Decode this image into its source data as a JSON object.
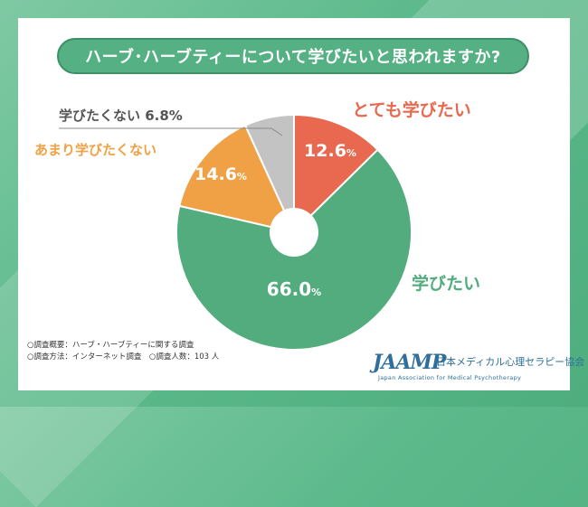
{
  "title": "ハーブ･ハーブティーについて学びたいと思われますか?",
  "chart_data": {
    "type": "pie",
    "style": "donut",
    "title": "ハーブ･ハーブティーについて学びたいと思われますか?",
    "unit": "%",
    "slices": [
      {
        "label": "とても学びたい",
        "value": 12.6,
        "display": "12.6",
        "color": "#e8694f",
        "label_color": "#e8694f"
      },
      {
        "label": "学びたい",
        "value": 66.0,
        "display": "66.0",
        "color": "#52ac7d",
        "label_color": "#52ac7d"
      },
      {
        "label": "あまり学びたくない",
        "value": 14.6,
        "display": "14.6",
        "color": "#f0a045",
        "label_color": "#f0a045"
      },
      {
        "label": "学びたくない",
        "value": 6.8,
        "display": "6.8",
        "color": "#c3c3c3",
        "label_color": "#555555"
      }
    ],
    "legend": "none"
  },
  "footnote": {
    "line1": "○調査概要：ハーブ・ハーブティーに関する調査",
    "line2": "○調査方法：インターネット調査　○調査人数：103 人"
  },
  "logo": {
    "mark": "JAAMP",
    "org_name": "日本メディカル心理セラピー協会",
    "org_name_en": "Japan Association for Medical Psychotherapy"
  },
  "colors": {
    "background": "#5bb98a",
    "title_pill": "#55b083"
  }
}
